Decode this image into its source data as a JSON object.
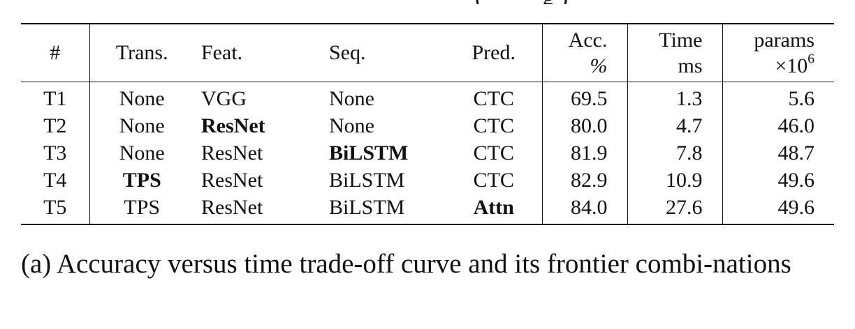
{
  "table": {
    "headers": [
      {
        "line1": "#",
        "line2": ""
      },
      {
        "line1": "Trans.",
        "line2": ""
      },
      {
        "line1": "Feat.",
        "line2": ""
      },
      {
        "line1": "Seq.",
        "line2": ""
      },
      {
        "line1": "Pred.",
        "line2": ""
      },
      {
        "line1": "Acc.",
        "line2": "%"
      },
      {
        "line1": "Time",
        "line2": "ms"
      },
      {
        "line1": "params",
        "line2": "×10",
        "line2_sup": "6"
      }
    ],
    "rows": [
      {
        "id": "T1",
        "trans": "None",
        "feat": "VGG",
        "seq": "None",
        "pred": "CTC",
        "acc": "69.5",
        "time": "1.3",
        "params": "5.6"
      },
      {
        "id": "T2",
        "trans": "None",
        "feat": "ResNet",
        "seq": "None",
        "pred": "CTC",
        "acc": "80.0",
        "time": "4.7",
        "params": "46.0"
      },
      {
        "id": "T3",
        "trans": "None",
        "feat": "ResNet",
        "seq": "BiLSTM",
        "pred": "CTC",
        "acc": "81.9",
        "time": "7.8",
        "params": "48.7"
      },
      {
        "id": "T4",
        "trans": "TPS",
        "feat": "ResNet",
        "seq": "BiLSTM",
        "pred": "CTC",
        "acc": "82.9",
        "time": "10.9",
        "params": "49.6"
      },
      {
        "id": "T5",
        "trans": "TPS",
        "feat": "ResNet",
        "seq": "BiLSTM",
        "pred": "Attn",
        "acc": "84.0",
        "time": "27.6",
        "params": "49.6"
      }
    ]
  },
  "caption": {
    "text": "(a) Accuracy versus time trade-off curve and its frontier combi-nations"
  }
}
